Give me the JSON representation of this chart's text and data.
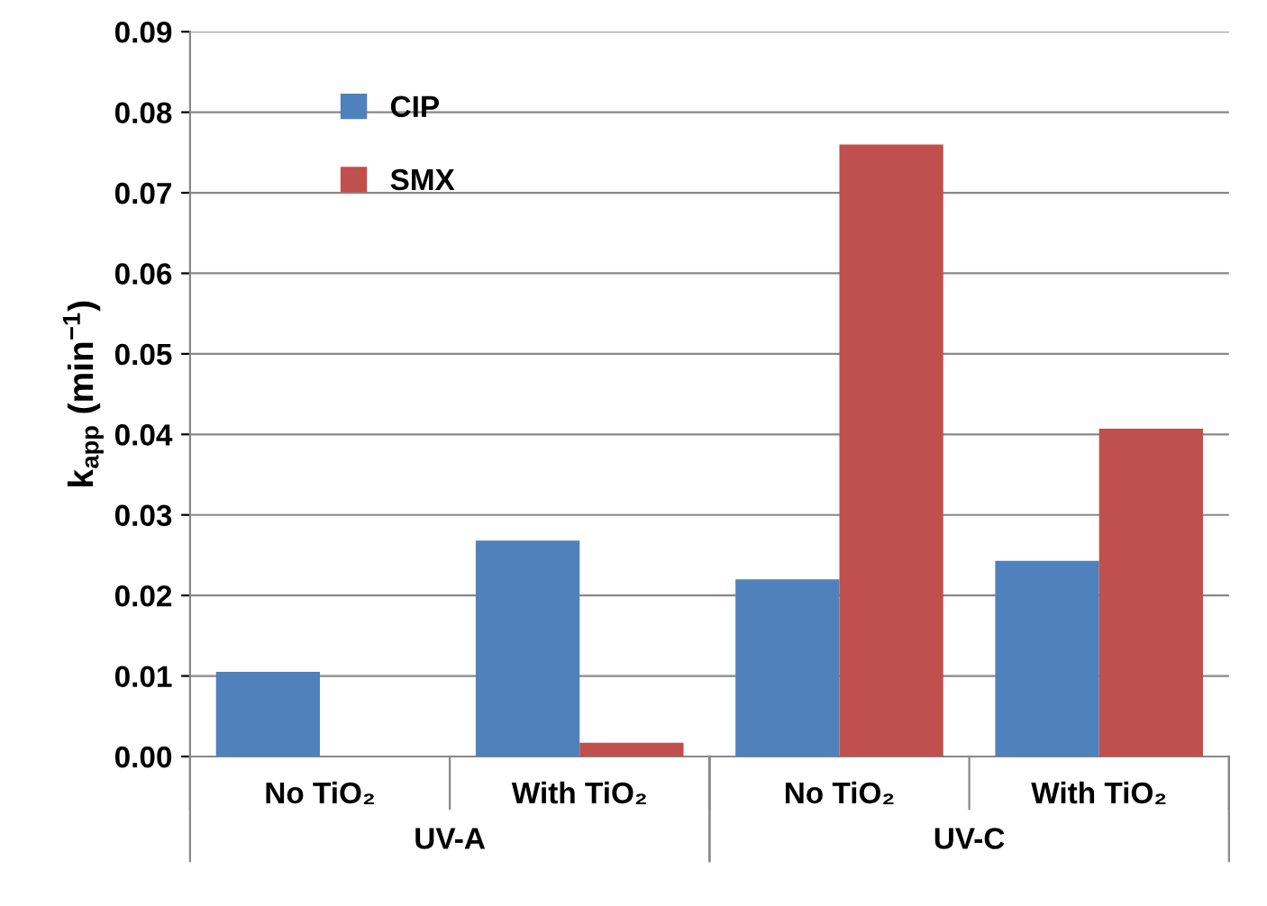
{
  "chart_data": {
    "type": "bar",
    "categories": [
      "No TiO₂",
      "With TiO₂",
      "No TiO₂",
      "With TiO₂"
    ],
    "series": [
      {
        "name": "CIP",
        "color": "#4f81bd",
        "values": [
          0.0105,
          0.0268,
          0.022,
          0.0243
        ]
      },
      {
        "name": "SMX",
        "color": "#c0504d",
        "values": [
          null,
          0.0017,
          0.076,
          0.0407
        ]
      }
    ],
    "ylabel": "k$_{app}$ (min$^{−1}$)",
    "ylim": [
      0,
      0.09
    ],
    "yticks": [
      {
        "value": 0,
        "label": "0.00"
      },
      0.01,
      0.02,
      0.03,
      0.04,
      0.05,
      0.06,
      0.07,
      0.08,
      0.09
    ],
    "annotations": [
      "UV-A",
      "UV-C"
    ],
    "grid": "y",
    "legend": "top left"
  }
}
